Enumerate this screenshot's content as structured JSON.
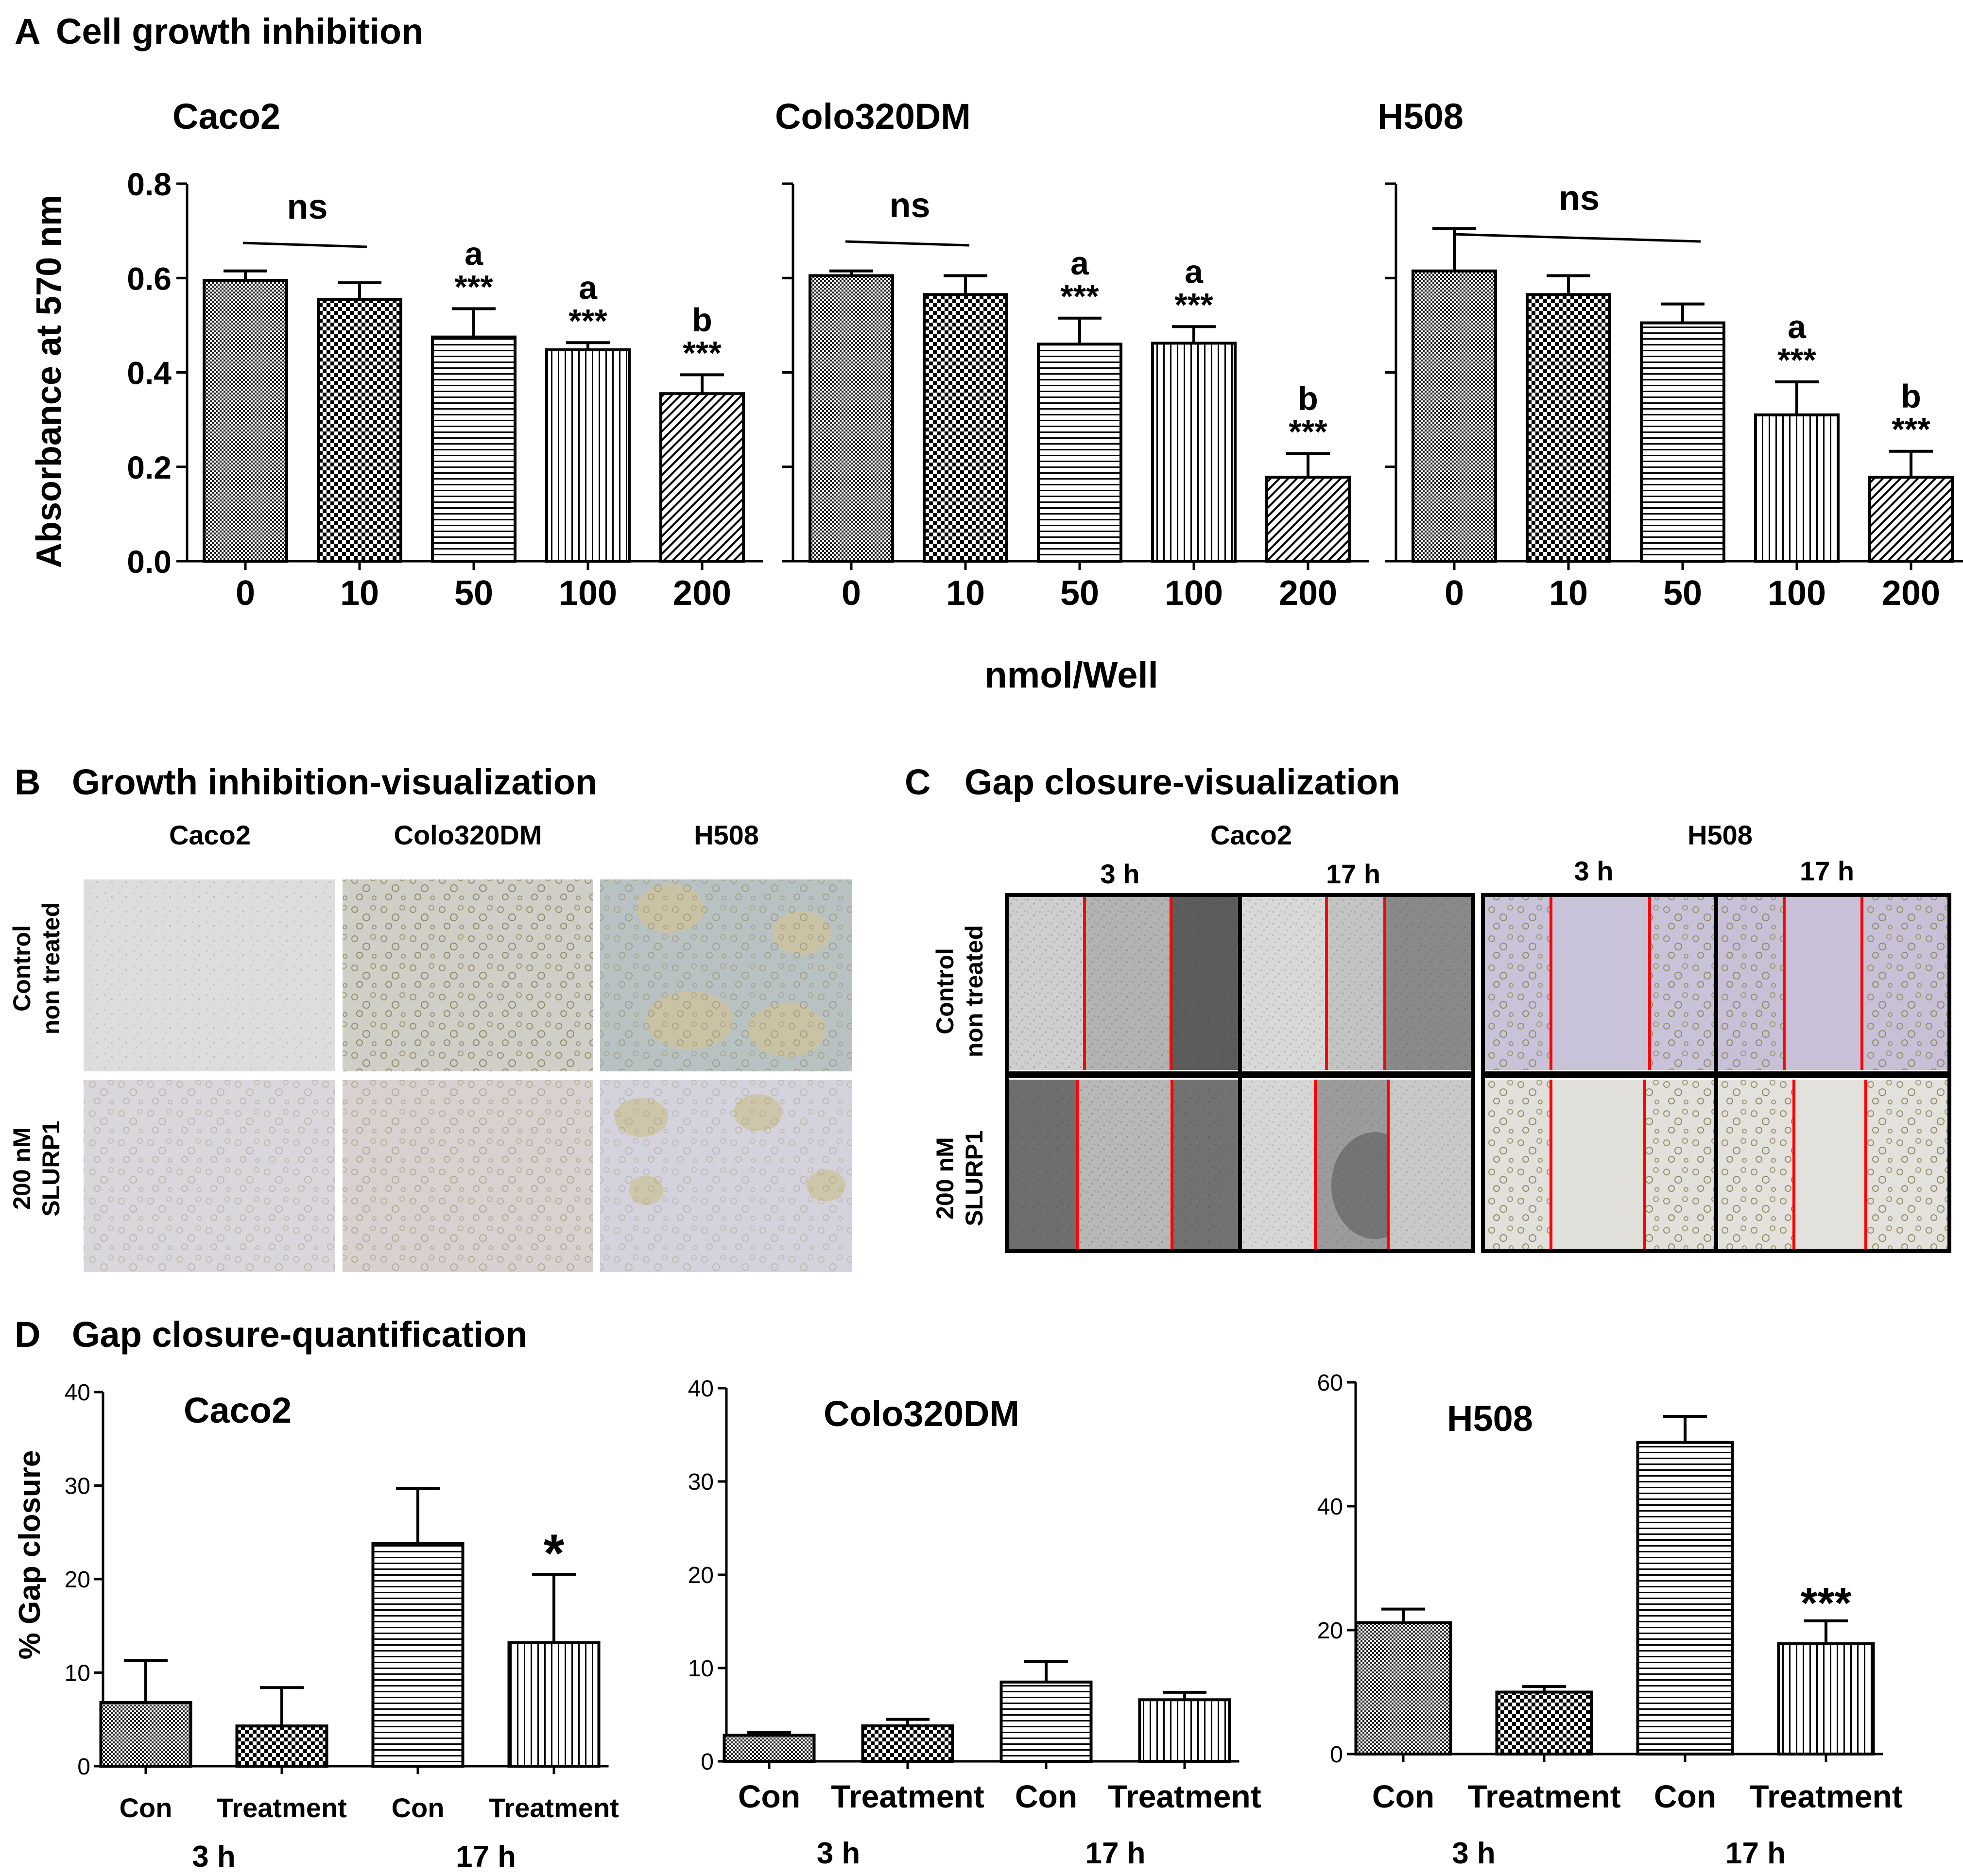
{
  "colors": {
    "ink": "#000000",
    "gapline": "#ff0000",
    "paper": "#ffffff"
  },
  "panelA": {
    "letter": "A",
    "title": "Cell growth inhibition",
    "ylabel": "Absorbance at 570 nm",
    "xlabel": "nmol/Well",
    "yticks": [
      "0.0",
      "0.2",
      "0.4",
      "0.6",
      "0.8"
    ],
    "ns_label": "ns",
    "sig_label": "***",
    "letters": [
      "a",
      "b"
    ]
  },
  "panelB": {
    "letter": "B",
    "title": "Growth inhibition-visualization",
    "cols": [
      "Caco2",
      "Colo320DM",
      "H508"
    ],
    "rows": [
      [
        "Control",
        "non treated"
      ],
      [
        "200 nM",
        "SLURP1"
      ]
    ]
  },
  "panelC": {
    "letter": "C",
    "title": "Gap closure-visualization",
    "groups": [
      "Caco2",
      "H508"
    ],
    "times": [
      "3 h",
      "17 h"
    ],
    "rows": [
      [
        "Control",
        "non treated"
      ],
      [
        "200 nM",
        "SLURP1"
      ]
    ]
  },
  "panelD": {
    "letter": "D",
    "title": "Gap closure-quantification",
    "ylabel": "% Gap closure",
    "categories": [
      "Con",
      "Treatment",
      "Con",
      "Treatment"
    ],
    "times": [
      "3 h",
      "17 h"
    ]
  },
  "chart_data": [
    {
      "type": "bar",
      "panel": "A",
      "title": "Caco2",
      "xlabel": "nmol/Well",
      "ylabel": "Absorbance at 570 nm",
      "categories": [
        "0",
        "10",
        "50",
        "100",
        "200"
      ],
      "values": [
        0.595,
        0.555,
        0.475,
        0.448,
        0.355
      ],
      "errors": [
        0.02,
        0.035,
        0.06,
        0.015,
        0.04
      ],
      "annotations": [
        "",
        "",
        "a ***",
        "a ***",
        "b ***"
      ],
      "ns_span": [
        0,
        1
      ],
      "ylim": [
        0,
        0.8
      ]
    },
    {
      "type": "bar",
      "panel": "A",
      "title": "Colo320DM",
      "xlabel": "nmol/Well",
      "ylabel": "Absorbance at 570 nm",
      "categories": [
        "0",
        "10",
        "50",
        "100",
        "200"
      ],
      "values": [
        0.605,
        0.565,
        0.46,
        0.462,
        0.178
      ],
      "errors": [
        0.01,
        0.04,
        0.055,
        0.035,
        0.05
      ],
      "annotations": [
        "",
        "",
        "a ***",
        "a ***",
        "b ***"
      ],
      "ns_span": [
        0,
        1
      ],
      "ylim": [
        0,
        0.8
      ]
    },
    {
      "type": "bar",
      "panel": "A",
      "title": "H508",
      "xlabel": "nmol/Well",
      "ylabel": "Absorbance at 570 nm",
      "categories": [
        "0",
        "10",
        "50",
        "100",
        "200"
      ],
      "values": [
        0.615,
        0.565,
        0.505,
        0.31,
        0.178
      ],
      "errors": [
        0.09,
        0.04,
        0.04,
        0.07,
        0.055
      ],
      "annotations": [
        "",
        "",
        "",
        "a ***",
        "b ***"
      ],
      "ns_span": [
        0,
        2
      ],
      "ylim": [
        0,
        0.8
      ]
    },
    {
      "type": "bar",
      "panel": "D",
      "title": "Caco2",
      "ylabel": "% Gap closure",
      "categories": [
        "Con 3 h",
        "Treatment 3 h",
        "Con 17 h",
        "Treatment 17 h"
      ],
      "values": [
        6.8,
        4.3,
        23.8,
        13.2
      ],
      "errors": [
        4.5,
        4.1,
        5.9,
        7.3
      ],
      "annotations": [
        "",
        "",
        "",
        "*"
      ],
      "ylim": [
        0,
        40
      ],
      "yticks": [
        "0",
        "10",
        "20",
        "30",
        "40"
      ]
    },
    {
      "type": "bar",
      "panel": "D",
      "title": "Colo320DM",
      "ylabel": "% Gap closure",
      "categories": [
        "Con 3 h",
        "Treatment 3 h",
        "Con 17 h",
        "Treatment 17 h"
      ],
      "values": [
        2.8,
        3.8,
        8.5,
        6.6
      ],
      "errors": [
        0.3,
        0.7,
        2.2,
        0.8
      ],
      "annotations": [
        "",
        "",
        "",
        ""
      ],
      "ylim": [
        0,
        40
      ],
      "yticks": [
        "0",
        "10",
        "20",
        "30",
        "40"
      ]
    },
    {
      "type": "bar",
      "panel": "D",
      "title": "H508",
      "ylabel": "% Gap closure",
      "categories": [
        "Con 3 h",
        "Treatment 3 h",
        "Con 17 h",
        "Treatment 17 h"
      ],
      "values": [
        21.2,
        10.0,
        50.3,
        17.8
      ],
      "errors": [
        2.2,
        0.9,
        4.2,
        3.7
      ],
      "annotations": [
        "",
        "",
        "",
        "***"
      ],
      "ylim": [
        0,
        60
      ],
      "yticks": [
        "0",
        "20",
        "40",
        "60"
      ]
    }
  ]
}
